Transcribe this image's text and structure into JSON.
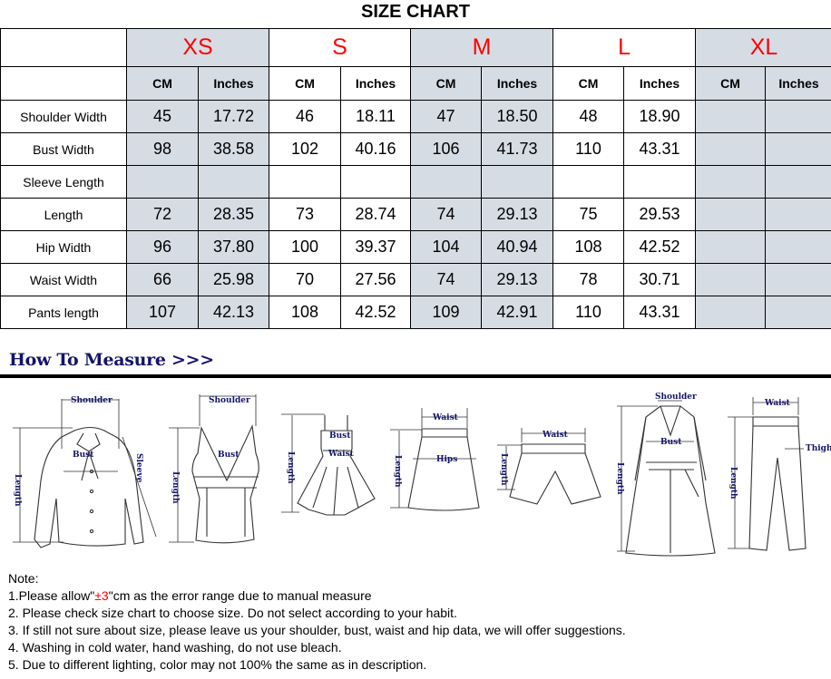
{
  "title": "SIZE CHART",
  "size_color": "#ff0000",
  "shade_color": "#d6dce4",
  "sizes": [
    "XS",
    "S",
    "M",
    "L",
    "XL"
  ],
  "unit_labels": [
    "CM",
    "Inches"
  ],
  "rows": [
    {
      "label": "Shoulder Width",
      "values": [
        "45",
        "17.72",
        "46",
        "18.11",
        "47",
        "18.50",
        "48",
        "18.90",
        "",
        ""
      ]
    },
    {
      "label": "Bust Width",
      "values": [
        "98",
        "38.58",
        "102",
        "40.16",
        "106",
        "41.73",
        "110",
        "43.31",
        "",
        ""
      ]
    },
    {
      "label": "Sleeve Length",
      "values": [
        "",
        "",
        "",
        "",
        "",
        "",
        "",
        "",
        "",
        ""
      ]
    },
    {
      "label": "Length",
      "values": [
        "72",
        "28.35",
        "73",
        "28.74",
        "74",
        "29.13",
        "75",
        "29.53",
        "",
        ""
      ]
    },
    {
      "label": "Hip Width",
      "values": [
        "96",
        "37.80",
        "100",
        "39.37",
        "104",
        "40.94",
        "108",
        "42.52",
        "",
        ""
      ]
    },
    {
      "label": "Waist Width",
      "values": [
        "66",
        "25.98",
        "70",
        "27.56",
        "74",
        "29.13",
        "78",
        "30.71",
        "",
        ""
      ]
    },
    {
      "label": "Pants length",
      "values": [
        "107",
        "42.13",
        "108",
        "42.52",
        "109",
        "42.91",
        "110",
        "43.31",
        "",
        ""
      ]
    }
  ],
  "measure": {
    "title": "How To Measure >>>",
    "labels": {
      "shoulder": "Shoulder",
      "bust": "Bust",
      "sleeve": "Sleeve",
      "length": "Length",
      "waist": "Waist",
      "hips": "Hips",
      "thigh": "Thigh"
    }
  },
  "notes": {
    "heading": "Note:",
    "n1_pre": "1.Please allow\"",
    "n1_red": "±3",
    "n1_post": "\"cm as the error range due to manual measure",
    "n2": "2. Please check size chart to choose size. Do not select according to your habit.",
    "n3": "3. If still not sure about size, please leave us your shoulder, bust, waist and hip data, we will offer suggestions.",
    "n4": "4. Washing in cold water, hand washing, do not use bleach.",
    "n5": "5. Due to different lighting, color may not 100% the same as in description."
  }
}
